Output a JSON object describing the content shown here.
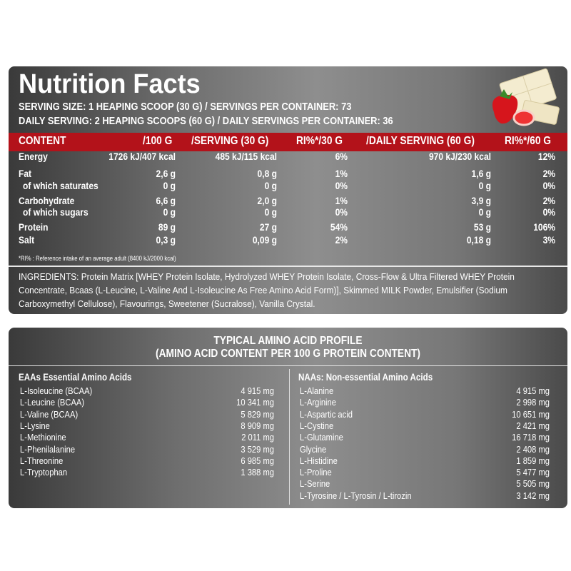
{
  "header": {
    "title": "Nutrition Facts",
    "serving_lines": [
      "SERVING SIZE: 1 HEAPING SCOOP  (30 G) / SERVINGS PER CONTAINER: 73",
      "DAILY SERVING: 2 HEAPING SCOOPS (60 G) / DAILY SERVINGS PER CONTAINER: 36"
    ]
  },
  "table": {
    "columns": [
      "CONTENT",
      "/100 G",
      "/SERVING (30 G)",
      "RI%*/30 G",
      "/DAILY SERVING (60 G)",
      "RI%*/60 G"
    ],
    "rows": [
      [
        "Energy",
        "1726 kJ/407 kcal",
        "485 kJ/115 kcal",
        "6%",
        "970 kJ/230 kcal",
        "12%"
      ],
      [
        "Fat",
        "2,6 g",
        "0,8 g",
        "1%",
        "1,6 g",
        "2%"
      ],
      [
        "of which saturates",
        "0 g",
        "0 g",
        "0%",
        "0 g",
        "0%"
      ],
      [
        "Carbohydrate",
        "6,6 g",
        "2,0 g",
        "1%",
        "3,9 g",
        "2%"
      ],
      [
        "of which sugars",
        "0 g",
        "0 g",
        "0%",
        "0 g",
        "0%"
      ],
      [
        "Protein",
        "89 g",
        "27 g",
        "54%",
        "53 g",
        "106%"
      ],
      [
        "Salt",
        "0,3 g",
        "0,09 g",
        "2%",
        "0,18 g",
        "3%"
      ]
    ]
  },
  "footnote": "*RI% : Reference intake of an average adult (8400 kJ/2000 kcal)",
  "ingredients": "INGREDIENTS: Protein Matrix [WHEY Protein Isolate, Hydrolyzed WHEY Protein Isolate, Cross-Flow & Ultra Filtered WHEY Protein Concentrate, Bcaas (L-Leucine, L-Valine And L-Isoleucine As Free Amino Acid Form)], Skimmed MILK Powder, Emulsifier (Sodium Carboxymethyl Cellulose), Flavourings, Sweetener (Sucralose), Vanilla Crystal.",
  "amino": {
    "title": [
      "TYPICAL AMINO ACID PROFILE",
      "(AMINO ACID CONTENT PER 100 G PROTEIN CONTENT)"
    ],
    "essential": {
      "heading": "EAAs Essential Amino Acids",
      "rows": [
        [
          "L-Isoleucine (BCAA)",
          "4 915 mg"
        ],
        [
          "L-Leucine (BCAA)",
          "10 341 mg"
        ],
        [
          "L-Valine (BCAA)",
          "5 829 mg"
        ],
        [
          "L-Lysine",
          "8 909 mg"
        ],
        [
          "L-Methionine",
          "2 011 mg"
        ],
        [
          "L-Phenilalanine",
          "3 529 mg"
        ],
        [
          "L-Threonine",
          "6 985 mg"
        ],
        [
          "L-Tryptophan",
          "1 388 mg"
        ]
      ]
    },
    "non_essential": {
      "heading": "NAAs: Non-essential Amino Acids",
      "rows": [
        [
          "L-Alanine",
          "4 915 mg"
        ],
        [
          "L-Arginine",
          "2 998 mg"
        ],
        [
          "L-Aspartic acid",
          "10 651 mg"
        ],
        [
          "L-Cystine",
          "2 421 mg"
        ],
        [
          "L-Glutamine",
          "16 718 mg"
        ],
        [
          "Glycine",
          "2 408 mg"
        ],
        [
          "L-Histidine",
          "1 859 mg"
        ],
        [
          "L-Proline",
          "5 477 mg"
        ],
        [
          "L-Serine",
          "5 505 mg"
        ],
        [
          "L-Tyrosine / L-Tyrosin / L-tirozin",
          "3 142 mg"
        ]
      ]
    }
  }
}
